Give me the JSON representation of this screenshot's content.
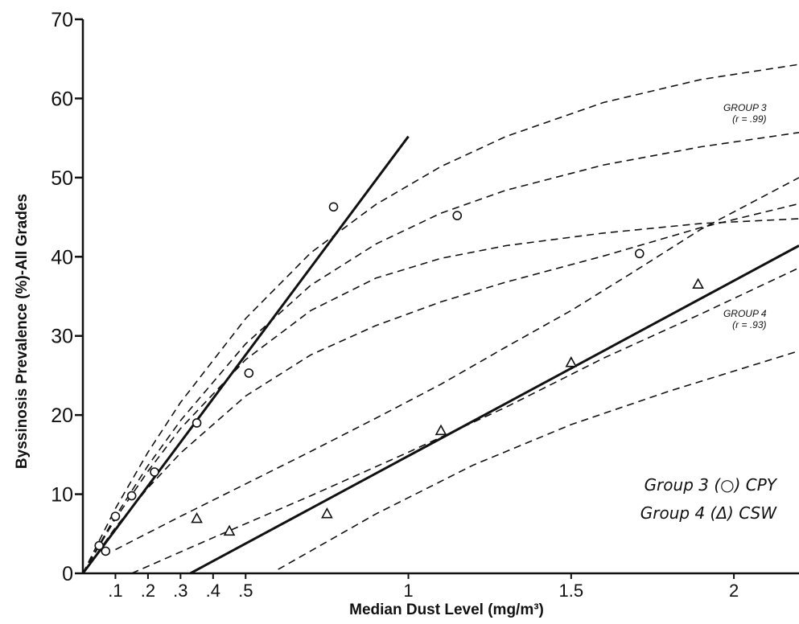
{
  "chart_data": {
    "type": "scatter",
    "xlabel": "Median Dust Level (mg/m³)",
    "ylabel": "Byssinosis Prevalence (%)-All Grades",
    "xlim": [
      0,
      2.2
    ],
    "ylim": [
      0,
      70
    ],
    "x_ticks": [
      {
        "v": 0.1,
        "t": ".1"
      },
      {
        "v": 0.2,
        "t": ".2"
      },
      {
        "v": 0.3,
        "t": ".3"
      },
      {
        "v": 0.4,
        "t": ".4"
      },
      {
        "v": 0.5,
        "t": ".5"
      },
      {
        "v": 1,
        "t": "1"
      },
      {
        "v": 1.5,
        "t": "1.5"
      },
      {
        "v": 2,
        "t": "2"
      }
    ],
    "y_ticks": [
      {
        "v": 0,
        "t": "0"
      },
      {
        "v": 10,
        "t": "10"
      },
      {
        "v": 20,
        "t": "20"
      },
      {
        "v": 30,
        "t": "30"
      },
      {
        "v": 40,
        "t": "40"
      },
      {
        "v": 50,
        "t": "50"
      },
      {
        "v": 60,
        "t": "60"
      },
      {
        "v": 70,
        "t": "70"
      }
    ],
    "grid": false,
    "series": [
      {
        "name": "Group 3 (○) CPY",
        "marker": "circle",
        "points": [
          [
            0.05,
            3.5
          ],
          [
            0.07,
            2.8
          ],
          [
            0.1,
            7.2
          ],
          [
            0.15,
            9.8
          ],
          [
            0.22,
            12.8
          ],
          [
            0.35,
            19
          ],
          [
            0.51,
            25.3
          ],
          [
            0.77,
            46.3
          ],
          [
            1.15,
            45.2
          ],
          [
            1.71,
            40.4
          ]
        ],
        "fit_line": [
          [
            0,
            0
          ],
          [
            1,
            55.2
          ]
        ]
      },
      {
        "name": "Group 4 (Δ) CSW",
        "marker": "triangle",
        "points": [
          [
            0.35,
            6.9
          ],
          [
            0.45,
            5.3
          ],
          [
            0.75,
            7.5
          ],
          [
            1.1,
            18
          ],
          [
            1.5,
            26.6
          ],
          [
            1.89,
            36.5
          ]
        ],
        "fit_line": [
          [
            0.33,
            0
          ],
          [
            2.2,
            41.4
          ]
        ]
      }
    ],
    "confidence_bands": [
      [
        [
          0,
          0
        ],
        [
          0.1,
          8.2
        ],
        [
          0.2,
          15.3
        ],
        [
          0.3,
          21.6
        ],
        [
          0.5,
          32.2
        ],
        [
          0.7,
          40.5
        ],
        [
          0.9,
          46.6
        ],
        [
          1.1,
          51.4
        ],
        [
          1.3,
          55.2
        ],
        [
          1.6,
          59.5
        ],
        [
          1.9,
          62.4
        ],
        [
          2.2,
          64.3
        ]
      ],
      [
        [
          0,
          0
        ],
        [
          0.1,
          7.2
        ],
        [
          0.2,
          13.6
        ],
        [
          0.3,
          19.3
        ],
        [
          0.5,
          29
        ],
        [
          0.7,
          36.4
        ],
        [
          0.9,
          41.6
        ],
        [
          1.1,
          45.5
        ],
        [
          1.3,
          48.4
        ],
        [
          1.6,
          51.6
        ],
        [
          1.9,
          53.9
        ],
        [
          2.2,
          55.7
        ]
      ],
      [
        [
          0,
          0
        ],
        [
          0.1,
          6.9
        ],
        [
          0.2,
          12.9
        ],
        [
          0.3,
          18.3
        ],
        [
          0.5,
          27
        ],
        [
          0.7,
          33.2
        ],
        [
          0.9,
          37.3
        ],
        [
          1.1,
          39.8
        ],
        [
          1.3,
          41.4
        ],
        [
          1.6,
          43
        ],
        [
          1.9,
          44.2
        ],
        [
          2.2,
          44.8
        ]
      ],
      [
        [
          0,
          0
        ],
        [
          0.1,
          5.8
        ],
        [
          0.2,
          10.8
        ],
        [
          0.3,
          15.2
        ],
        [
          0.5,
          22.4
        ],
        [
          0.7,
          27.6
        ],
        [
          0.9,
          31.3
        ],
        [
          1.1,
          34.3
        ],
        [
          1.3,
          36.8
        ],
        [
          1.6,
          40.1
        ],
        [
          1.9,
          43.7
        ],
        [
          2.2,
          46.7
        ]
      ],
      [
        [
          0.1,
          3
        ],
        [
          0.3,
          7.2
        ],
        [
          0.5,
          11.3
        ],
        [
          0.7,
          15.4
        ],
        [
          0.9,
          19.6
        ],
        [
          1.1,
          23.9
        ],
        [
          1.3,
          28.6
        ],
        [
          1.5,
          33.2
        ],
        [
          1.7,
          38.3
        ],
        [
          1.9,
          43.5
        ],
        [
          2.2,
          50
        ]
      ],
      [
        [
          0.15,
          0
        ],
        [
          0.4,
          4.5
        ],
        [
          0.7,
          9.8
        ],
        [
          1,
          15.3
        ],
        [
          1.3,
          21
        ],
        [
          1.6,
          27.2
        ],
        [
          1.9,
          32.8
        ],
        [
          2.2,
          38.6
        ]
      ],
      [
        [
          0.6,
          0.5
        ],
        [
          0.9,
          7.5
        ],
        [
          1.2,
          13.7
        ],
        [
          1.5,
          18.8
        ],
        [
          1.8,
          23
        ],
        [
          2.2,
          28.1
        ]
      ]
    ],
    "annotations": [
      {
        "lines": [
          "GROUP 3",
          "(r = .99)"
        ],
        "anchor": [
          2.1,
          58.4
        ]
      },
      {
        "lines": [
          "GROUP 4",
          "(r = .93)"
        ],
        "anchor": [
          2.1,
          32.4
        ]
      }
    ],
    "legend_lines": [
      "Group 3 (○) CPY",
      "Group 4 (Δ) CSW"
    ]
  }
}
